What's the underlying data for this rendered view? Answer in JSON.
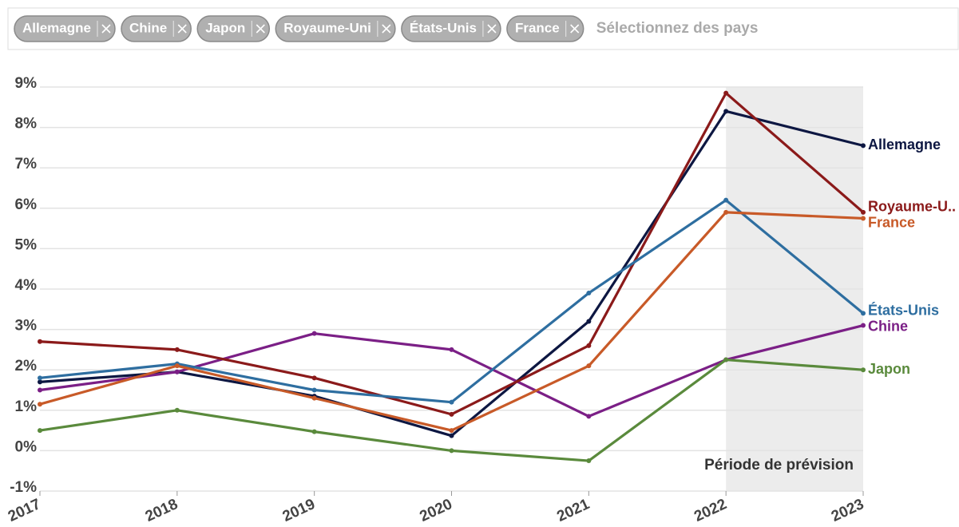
{
  "placeholder": "Sélectionnez des pays",
  "chart_data": {
    "type": "line",
    "categories": [
      "2017",
      "2018",
      "2019",
      "2020",
      "2021",
      "2022",
      "2023"
    ],
    "series": [
      {
        "name": "Allemagne",
        "color": "#0d1742",
        "values": [
          1.7,
          1.95,
          1.35,
          0.37,
          3.2,
          8.4,
          7.55
        ]
      },
      {
        "name": "Chine",
        "color": "#7b1f86",
        "values": [
          1.5,
          1.95,
          2.9,
          2.5,
          0.85,
          2.25,
          3.1
        ]
      },
      {
        "name": "Japon",
        "color": "#5a8a3c",
        "values": [
          0.5,
          1.0,
          0.47,
          0.0,
          -0.25,
          2.25,
          2.0
        ]
      },
      {
        "name": "Royaume-Uni",
        "label": "Royaume-U..",
        "color": "#8b1a1a",
        "values": [
          2.7,
          2.5,
          1.8,
          0.9,
          2.6,
          8.85,
          5.9
        ]
      },
      {
        "name": "États-Unis",
        "color": "#2e6ea0",
        "values": [
          1.8,
          2.15,
          1.5,
          1.2,
          3.9,
          6.2,
          3.4
        ]
      },
      {
        "name": "France",
        "color": "#c85a28",
        "values": [
          1.15,
          2.1,
          1.3,
          0.5,
          2.1,
          5.9,
          5.75
        ]
      }
    ],
    "ylim": [
      -1,
      9
    ],
    "yticks": [
      {
        "value": -1,
        "label": "-1%"
      },
      {
        "value": 0,
        "label": "0%"
      },
      {
        "value": 1,
        "label": "1%"
      },
      {
        "value": 2,
        "label": "2%"
      },
      {
        "value": 3,
        "label": "3%"
      },
      {
        "value": 4,
        "label": "4%"
      },
      {
        "value": 5,
        "label": "5%"
      },
      {
        "value": 6,
        "label": "6%"
      },
      {
        "value": 7,
        "label": "7%"
      },
      {
        "value": 8,
        "label": "8%"
      },
      {
        "value": 9,
        "label": "9%"
      }
    ],
    "grid": true,
    "forecast": {
      "from": "2022",
      "to": "2023",
      "label": "Période de prévision"
    }
  }
}
